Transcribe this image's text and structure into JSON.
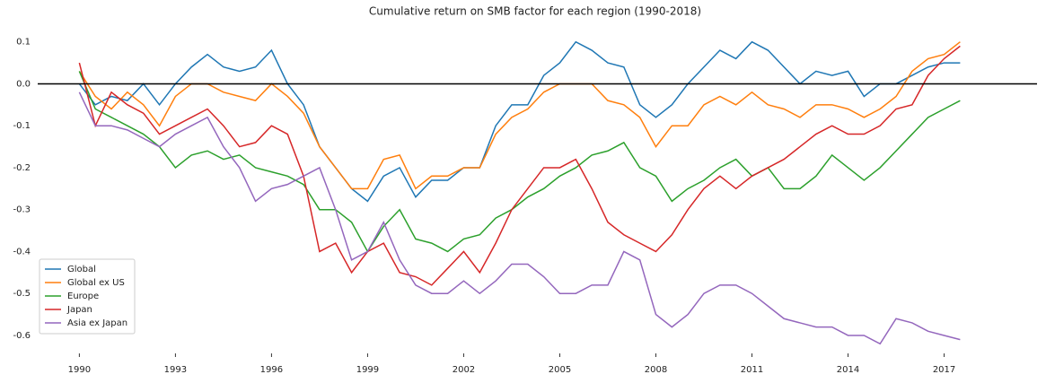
{
  "chart_data": {
    "type": "line",
    "title": "Cumulative return on SMB factor for each region (1990-2018)",
    "x": [
      1990,
      1990.5,
      1991,
      1991.5,
      1992,
      1992.5,
      1993,
      1993.5,
      1994,
      1994.5,
      1995,
      1995.5,
      1996,
      1996.5,
      1997,
      1997.5,
      1998,
      1998.5,
      1999,
      1999.5,
      2000,
      2000.5,
      2001,
      2001.5,
      2002,
      2002.5,
      2003,
      2003.5,
      2004,
      2004.5,
      2005,
      2005.5,
      2006,
      2006.5,
      2007,
      2007.5,
      2008,
      2008.5,
      2009,
      2009.5,
      2010,
      2010.5,
      2011,
      2011.5,
      2012,
      2012.5,
      2013,
      2013.5,
      2014,
      2014.5,
      2015,
      2015.5,
      2016,
      2016.5,
      2017,
      2017.5
    ],
    "series": [
      {
        "name": "Global",
        "color": "#1f77b4",
        "values": [
          0,
          -0.05,
          -0.03,
          -0.04,
          0,
          -0.05,
          0,
          0.04,
          0.07,
          0.04,
          0.03,
          0.04,
          0.08,
          0,
          -0.05,
          -0.15,
          -0.2,
          -0.25,
          -0.28,
          -0.22,
          -0.2,
          -0.27,
          -0.23,
          -0.23,
          -0.2,
          -0.2,
          -0.1,
          -0.05,
          -0.05,
          0.02,
          0.05,
          0.1,
          0.08,
          0.05,
          0.04,
          -0.05,
          -0.08,
          -0.05,
          0,
          0.04,
          0.08,
          0.06,
          0.1,
          0.08,
          0.04,
          0,
          0.03,
          0.02,
          0.03,
          -0.03,
          0,
          0,
          0.02,
          0.04,
          0.05,
          0.05
        ]
      },
      {
        "name": "Global ex US",
        "color": "#ff7f0e",
        "values": [
          0.03,
          -0.03,
          -0.06,
          -0.02,
          -0.05,
          -0.1,
          -0.03,
          0,
          0,
          -0.02,
          -0.03,
          -0.04,
          0,
          -0.03,
          -0.07,
          -0.15,
          -0.2,
          -0.25,
          -0.25,
          -0.18,
          -0.17,
          -0.25,
          -0.22,
          -0.22,
          -0.2,
          -0.2,
          -0.12,
          -0.08,
          -0.06,
          -0.02,
          0,
          0,
          0,
          -0.04,
          -0.05,
          -0.08,
          -0.15,
          -0.1,
          -0.1,
          -0.05,
          -0.03,
          -0.05,
          -0.02,
          -0.05,
          -0.06,
          -0.08,
          -0.05,
          -0.05,
          -0.06,
          -0.08,
          -0.06,
          -0.03,
          0.03,
          0.06,
          0.07,
          0.1
        ]
      },
      {
        "name": "Europe",
        "color": "#2ca02c",
        "values": [
          0.03,
          -0.06,
          -0.08,
          -0.1,
          -0.12,
          -0.15,
          -0.2,
          -0.17,
          -0.16,
          -0.18,
          -0.17,
          -0.2,
          -0.21,
          -0.22,
          -0.24,
          -0.3,
          -0.3,
          -0.33,
          -0.4,
          -0.34,
          -0.3,
          -0.37,
          -0.38,
          -0.4,
          -0.37,
          -0.36,
          -0.32,
          -0.3,
          -0.27,
          -0.25,
          -0.22,
          -0.2,
          -0.17,
          -0.16,
          -0.14,
          -0.2,
          -0.22,
          -0.28,
          -0.25,
          -0.23,
          -0.2,
          -0.18,
          -0.22,
          -0.2,
          -0.25,
          -0.25,
          -0.22,
          -0.17,
          -0.2,
          -0.23,
          -0.2,
          -0.16,
          -0.12,
          -0.08,
          -0.06,
          -0.04
        ]
      },
      {
        "name": "Japan",
        "color": "#d62728",
        "values": [
          0.05,
          -0.1,
          -0.02,
          -0.05,
          -0.07,
          -0.12,
          -0.1,
          -0.08,
          -0.06,
          -0.1,
          -0.15,
          -0.14,
          -0.1,
          -0.12,
          -0.22,
          -0.4,
          -0.38,
          -0.45,
          -0.4,
          -0.38,
          -0.45,
          -0.46,
          -0.48,
          -0.44,
          -0.4,
          -0.45,
          -0.38,
          -0.3,
          -0.25,
          -0.2,
          -0.2,
          -0.18,
          -0.25,
          -0.33,
          -0.36,
          -0.38,
          -0.4,
          -0.36,
          -0.3,
          -0.25,
          -0.22,
          -0.25,
          -0.22,
          -0.2,
          -0.18,
          -0.15,
          -0.12,
          -0.1,
          -0.12,
          -0.12,
          -0.1,
          -0.06,
          -0.05,
          0.02,
          0.06,
          0.09
        ]
      },
      {
        "name": "Asia ex Japan",
        "color": "#9467bd",
        "values": [
          -0.02,
          -0.1,
          -0.1,
          -0.11,
          -0.13,
          -0.15,
          -0.12,
          -0.1,
          -0.08,
          -0.15,
          -0.2,
          -0.28,
          -0.25,
          -0.24,
          -0.22,
          -0.2,
          -0.3,
          -0.42,
          -0.4,
          -0.33,
          -0.42,
          -0.48,
          -0.5,
          -0.5,
          -0.47,
          -0.5,
          -0.47,
          -0.43,
          -0.43,
          -0.46,
          -0.5,
          -0.5,
          -0.48,
          -0.48,
          -0.4,
          -0.42,
          -0.55,
          -0.58,
          -0.55,
          -0.5,
          -0.48,
          -0.48,
          -0.5,
          -0.53,
          -0.56,
          -0.57,
          -0.58,
          -0.58,
          -0.6,
          -0.6,
          -0.62,
          -0.56,
          -0.57,
          -0.59,
          -0.6,
          -0.61
        ]
      }
    ],
    "xlim": [
      1988.7,
      2019.9
    ],
    "xticks": [
      1990,
      1993,
      1996,
      1999,
      2002,
      2005,
      2008,
      2011,
      2014,
      2017
    ],
    "ylim": [
      -0.63,
      0.125
    ],
    "yticks": [
      0.1,
      {
        "value": 0,
        "label": "0.0"
      },
      -0.1,
      -0.2,
      -0.3,
      -0.4,
      -0.5,
      -0.6
    ],
    "reference_line": 0,
    "grid": false,
    "legend": "lower-left"
  }
}
